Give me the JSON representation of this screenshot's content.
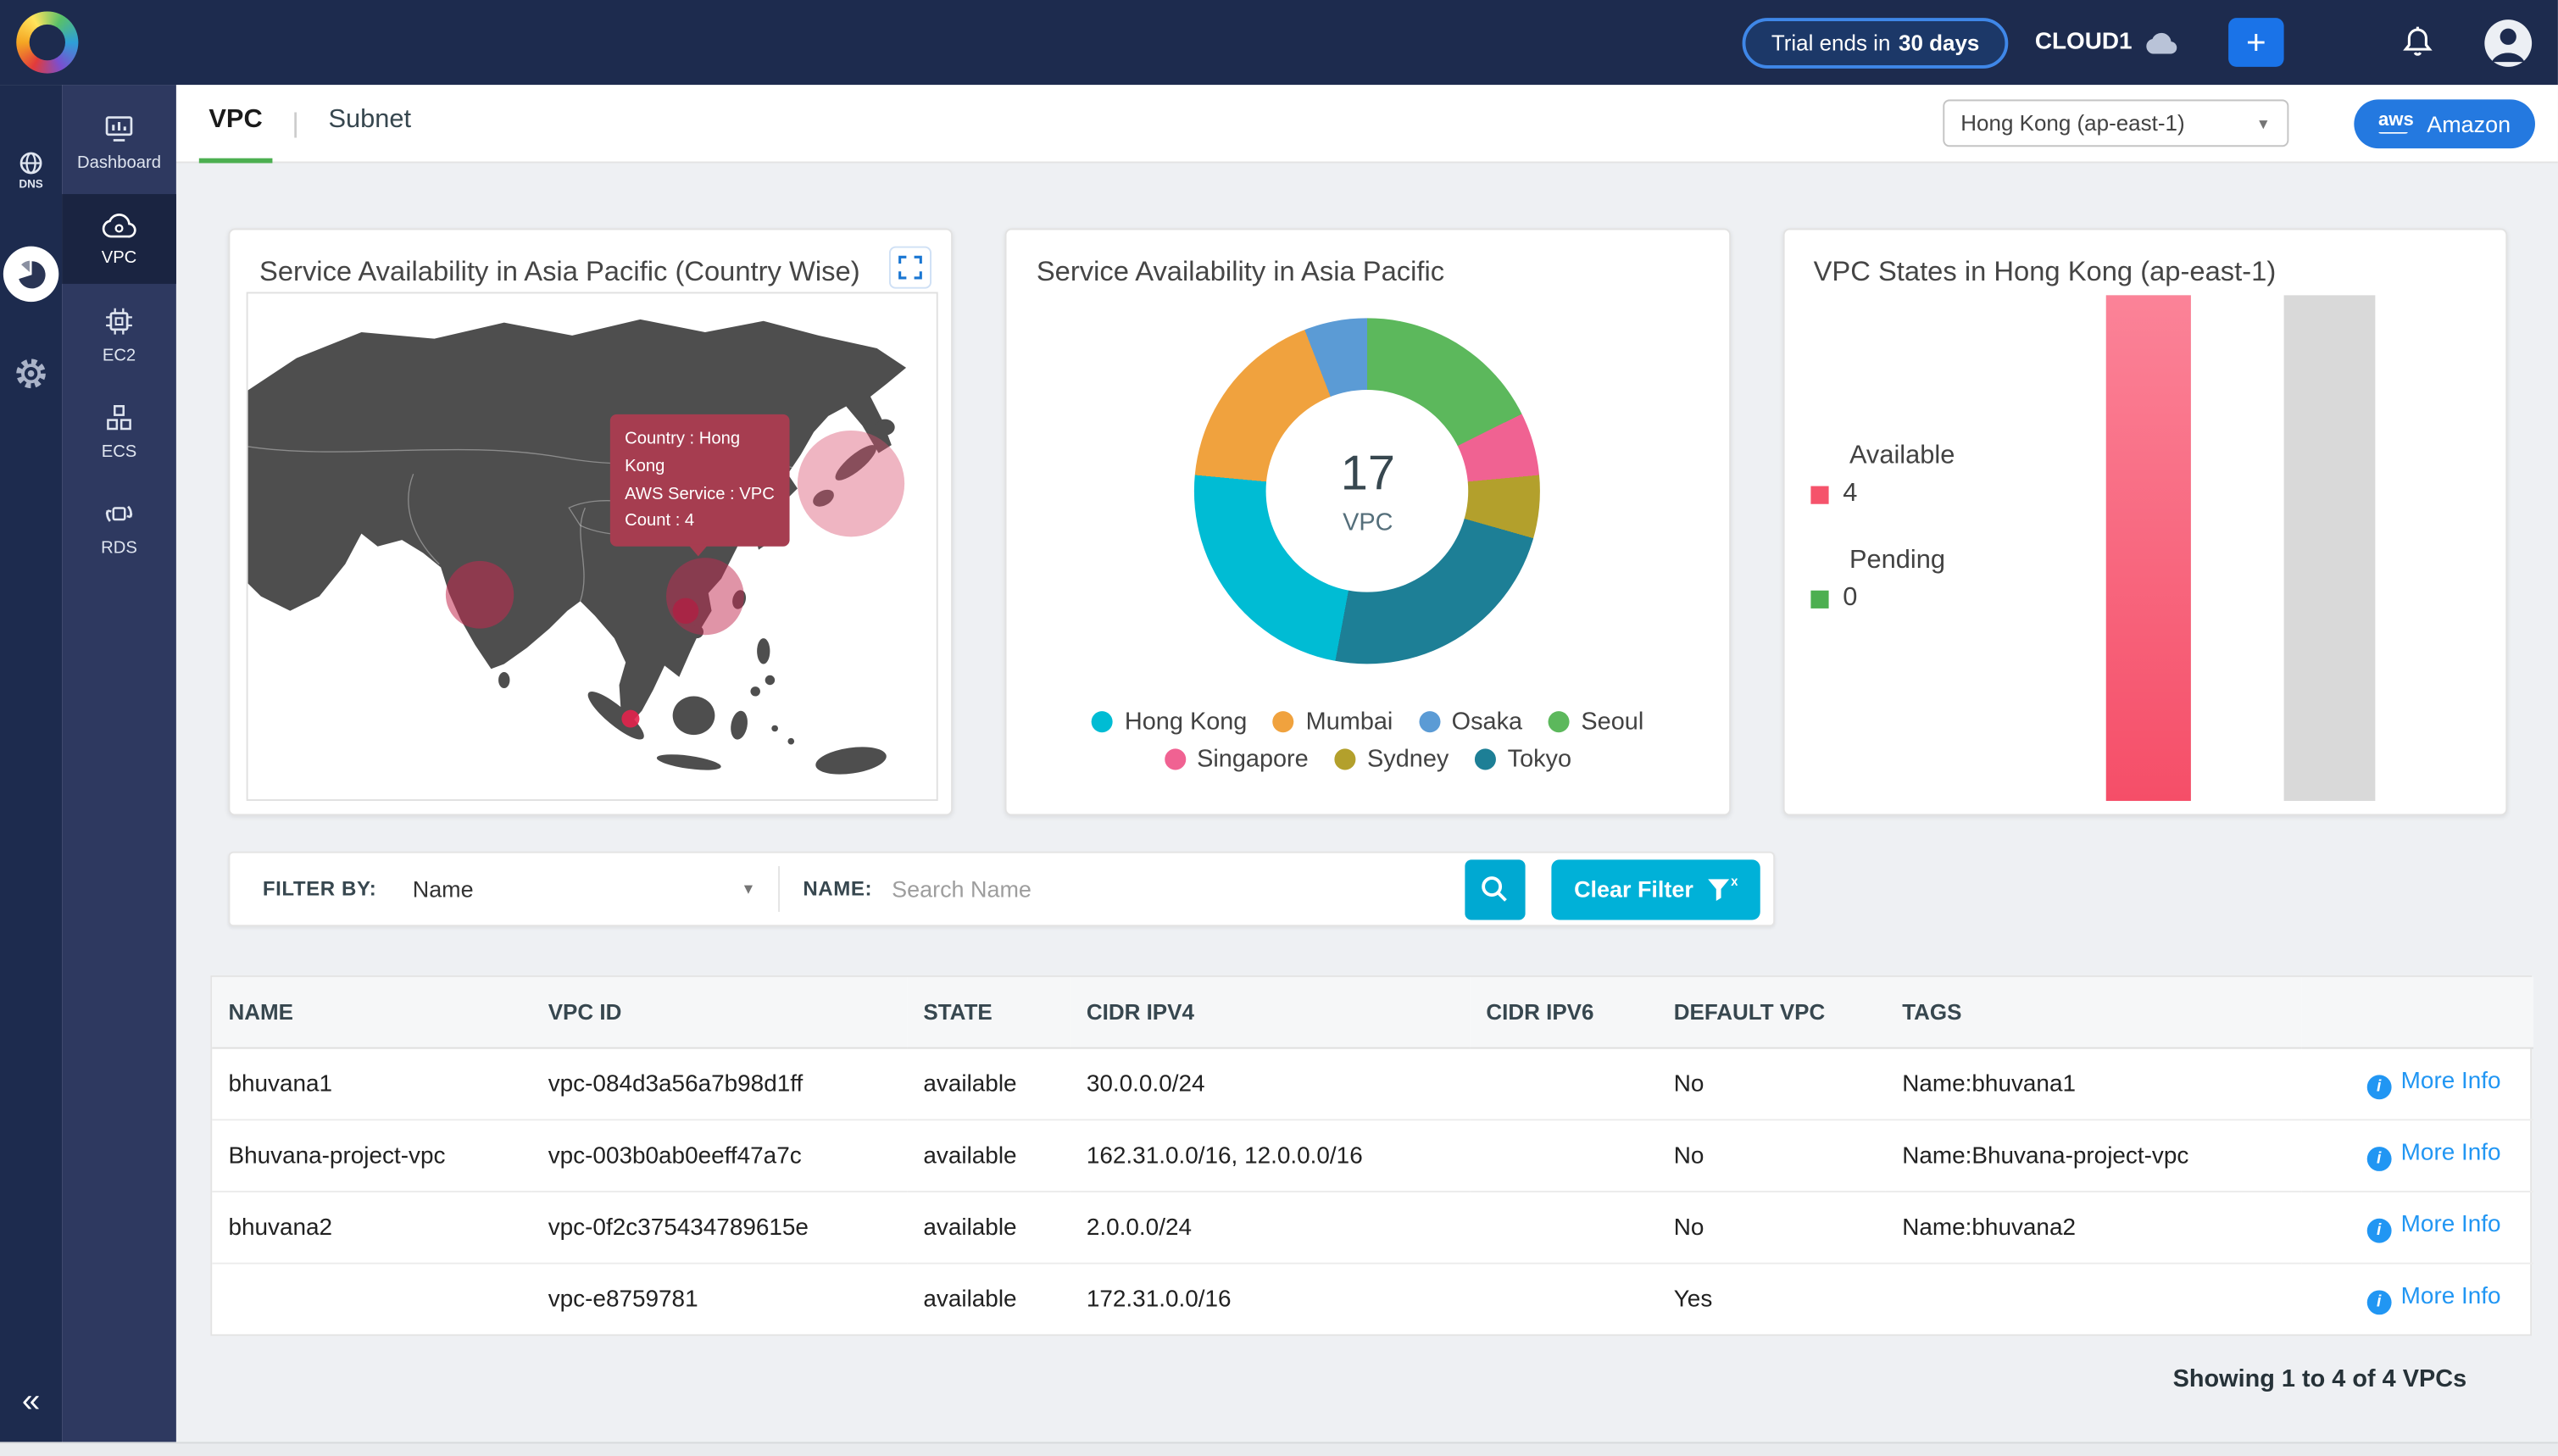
{
  "topbar": {
    "trial_prefix": "Trial ends in",
    "trial_bold": "30 days",
    "account_name": "CLOUD1",
    "add_button": "+"
  },
  "sidebar": {
    "collapse": "«",
    "rail": {
      "dns_label": "DNS"
    },
    "items": [
      {
        "label": "Dashboard"
      },
      {
        "label": "VPC"
      },
      {
        "label": "EC2"
      },
      {
        "label": "ECS"
      },
      {
        "label": "RDS"
      }
    ]
  },
  "header": {
    "tabs": [
      {
        "label": "VPC"
      },
      {
        "label": "Subnet"
      }
    ],
    "region_selected": "Hong Kong (ap-east-1)",
    "provider_button": "Amazon",
    "provider_logo_text": "aws"
  },
  "map_card": {
    "title": "Service Availability in Asia Pacific (Country Wise)",
    "tooltip": [
      "Country : Hong Kong",
      "AWS Service : VPC",
      "Count : 4"
    ]
  },
  "donut_card": {
    "title": "Service Availability in Asia Pacific",
    "center_value": "17",
    "center_label": "VPC"
  },
  "bar_card": {
    "title": "VPC States in Hong Kong (ap-east-1)"
  },
  "chart_data": [
    {
      "type": "map",
      "title": "Service Availability in Asia Pacific (Country Wise)",
      "highlighted_locations": [
        "India",
        "Hong Kong / South China",
        "Japan",
        "Singapore"
      ],
      "tooltip": {
        "country": "Hong Kong",
        "aws_service": "VPC",
        "count": 4
      }
    },
    {
      "type": "pie",
      "title": "Service Availability in Asia Pacific",
      "center": {
        "value": 17,
        "label": "VPC"
      },
      "segments": [
        {
          "label": "Seoul",
          "value": 3,
          "color": "#5cb85c"
        },
        {
          "label": "Singapore",
          "value": 1,
          "color": "#f06292"
        },
        {
          "label": "Sydney",
          "value": 1,
          "color": "#b3a02c"
        },
        {
          "label": "Tokyo",
          "value": 4,
          "color": "#1d7f96"
        },
        {
          "label": "Hong Kong",
          "value": 4,
          "color": "#00bcd4"
        },
        {
          "label": "Mumbai",
          "value": 3,
          "color": "#f0a23e"
        },
        {
          "label": "Osaka",
          "value": 1,
          "color": "#5b9bd5"
        }
      ],
      "legend_order": [
        "Hong Kong",
        "Mumbai",
        "Osaka",
        "Seoul",
        "Singapore",
        "Sydney",
        "Tokyo"
      ]
    },
    {
      "type": "bar",
      "title": "VPC States in Hong Kong (ap-east-1)",
      "categories": [
        "Available",
        "Pending"
      ],
      "values": [
        4,
        0
      ],
      "colors": [
        "#f5536b",
        "#4caf50"
      ]
    }
  ],
  "filter": {
    "filter_by_label": "FILTER BY:",
    "filter_by_value": "Name",
    "name_label": "NAME:",
    "search_placeholder": "Search Name",
    "clear_button": "Clear Filter"
  },
  "table": {
    "columns": [
      "NAME",
      "VPC ID",
      "STATE",
      "CIDR IPV4",
      "CIDR IPV6",
      "DEFAULT VPC",
      "TAGS",
      ""
    ],
    "more_info_label": "More Info",
    "rows": [
      {
        "cells": [
          "bhuvana1",
          "vpc-084d3a56a7b98d1ff",
          "available",
          "30.0.0.0/24",
          "",
          "No",
          "Name:bhuvana1"
        ]
      },
      {
        "cells": [
          "Bhuvana-project-vpc",
          "vpc-003b0ab0eeff47a7c",
          "available",
          "162.31.0.0/16, 12.0.0.0/16",
          "",
          "No",
          "Name:Bhuvana-project-vpc"
        ]
      },
      {
        "cells": [
          "bhuvana2",
          "vpc-0f2c375434789615e",
          "available",
          "2.0.0.0/24",
          "",
          "No",
          "Name:bhuvana2"
        ]
      },
      {
        "cells": [
          "",
          "vpc-e8759781",
          "available",
          "172.31.0.0/16",
          "",
          "Yes",
          ""
        ]
      }
    ]
  },
  "footer": {
    "summary": "Showing 1 to 4 of 4 VPCs"
  }
}
